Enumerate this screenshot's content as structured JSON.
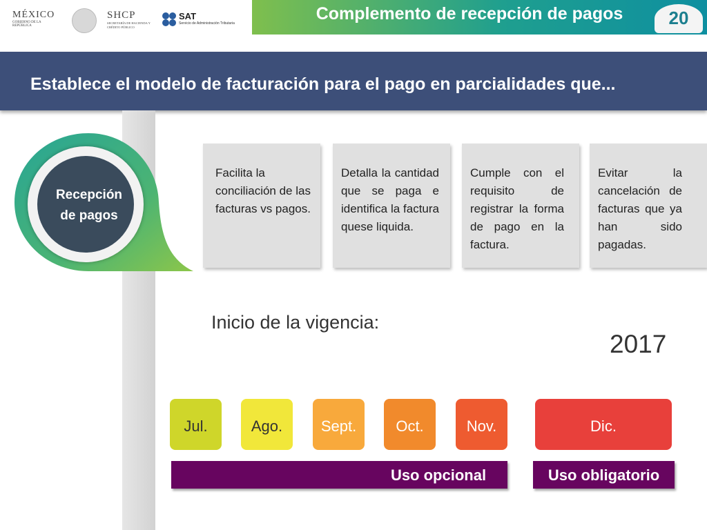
{
  "header": {
    "logos": {
      "mexico": "MÉXICO",
      "mexico_sub": "GOBIERNO DE LA REPÚBLICA",
      "shcp": "SHCP",
      "shcp_sub": "SECRETARÍA DE HACIENDA Y CRÉDITO PÚBLICO",
      "sat": "SAT",
      "sat_sub": "Servicio de Administración Tributaria"
    },
    "title": "Complemento de recepción de pagos",
    "badge": "20"
  },
  "banner": {
    "text": "Establece el modelo de facturación para el pago en parcialidades que..."
  },
  "circle": {
    "line1": "Recepción",
    "line2": "de pagos"
  },
  "cards": [
    {
      "text": "Facilita la conciliación de las facturas vs pagos."
    },
    {
      "text": "Detalla la cantidad que se paga e identifica la factura quese liquida."
    },
    {
      "text": "Cumple con el requisito de registrar la forma de pago en la factura."
    },
    {
      "text": "Evitar la cancelación de facturas que ya han sido pagadas."
    }
  ],
  "vigencia": {
    "label": "Inicio de la vigencia:",
    "year": "2017"
  },
  "months": [
    {
      "label": "Jul.",
      "color": "#cfd62a"
    },
    {
      "label": "Ago.",
      "color": "#f1e73a"
    },
    {
      "label": "Sept.",
      "color": "#f8a93c"
    },
    {
      "label": "Oct.",
      "color": "#f18a2c"
    },
    {
      "label": "Nov.",
      "color": "#ee5b30"
    },
    {
      "label": "Dic.",
      "color": "#e8403b"
    }
  ],
  "bars": {
    "optional": "Uso opcional",
    "mandatory": "Uso obligatorio",
    "color": "#67055f"
  }
}
